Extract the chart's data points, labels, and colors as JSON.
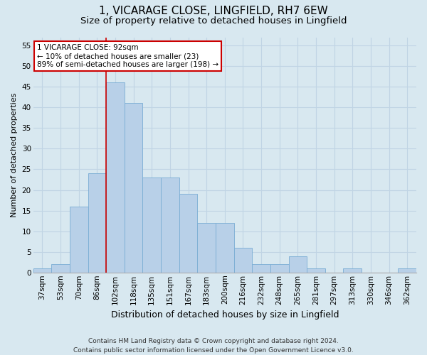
{
  "title": "1, VICARAGE CLOSE, LINGFIELD, RH7 6EW",
  "subtitle": "Size of property relative to detached houses in Lingfield",
  "xlabel": "Distribution of detached houses by size in Lingfield",
  "ylabel": "Number of detached properties",
  "categories": [
    "37sqm",
    "53sqm",
    "70sqm",
    "86sqm",
    "102sqm",
    "118sqm",
    "135sqm",
    "151sqm",
    "167sqm",
    "183sqm",
    "200sqm",
    "216sqm",
    "232sqm",
    "248sqm",
    "265sqm",
    "281sqm",
    "297sqm",
    "313sqm",
    "330sqm",
    "346sqm",
    "362sqm"
  ],
  "values": [
    1,
    2,
    16,
    24,
    46,
    41,
    23,
    23,
    19,
    12,
    12,
    6,
    2,
    2,
    4,
    1,
    0,
    1,
    0,
    0,
    1
  ],
  "bar_color": "#b8d0e8",
  "bar_edge_color": "#7aadd4",
  "grid_color": "#c0d4e4",
  "background_color": "#d8e8f0",
  "annotation_text": "1 VICARAGE CLOSE: 92sqm\n← 10% of detached houses are smaller (23)\n89% of semi-detached houses are larger (198) →",
  "annotation_box_color": "white",
  "annotation_box_edge_color": "#cc0000",
  "vline_color": "#cc0000",
  "vline_x": 3.5,
  "ylim": [
    0,
    57
  ],
  "yticks": [
    0,
    5,
    10,
    15,
    20,
    25,
    30,
    35,
    40,
    45,
    50,
    55
  ],
  "footer": "Contains HM Land Registry data © Crown copyright and database right 2024.\nContains public sector information licensed under the Open Government Licence v3.0.",
  "title_fontsize": 11,
  "subtitle_fontsize": 9.5,
  "xlabel_fontsize": 9,
  "ylabel_fontsize": 8,
  "tick_fontsize": 7.5,
  "annotation_fontsize": 7.5,
  "footer_fontsize": 6.5
}
